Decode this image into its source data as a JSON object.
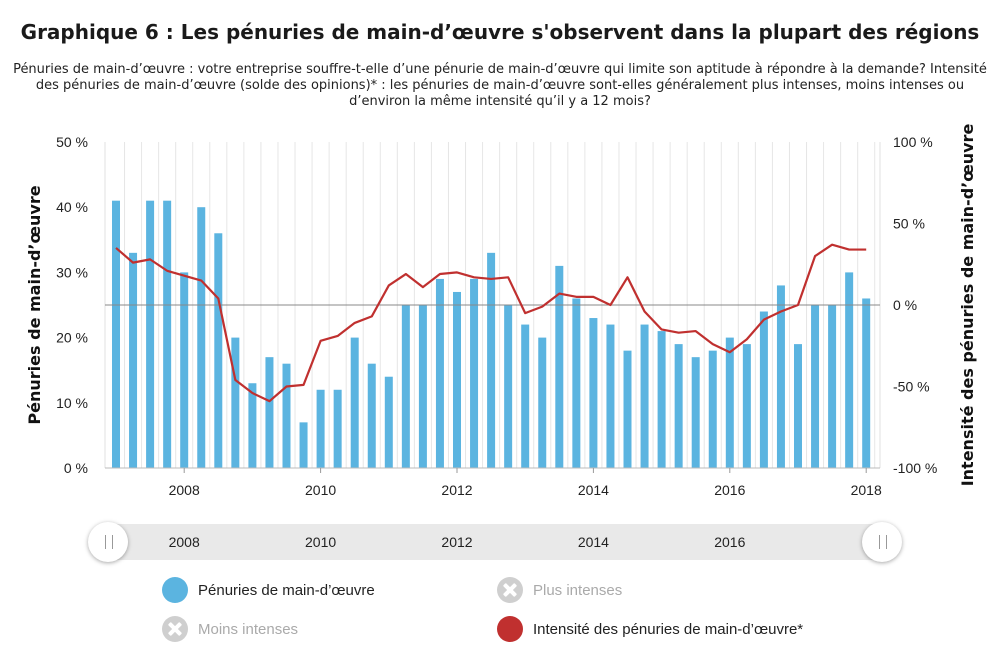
{
  "title": "Graphique 6 : Les pénuries de main-d’œuvre s'observent dans la plupart des régions",
  "subtitle": "Pénuries de main-d’œuvre : votre entreprise souffre-t-elle d’une pénurie de main-d’œuvre qui limite son aptitude à répondre à la demande? Intensité des pénuries de main-d’œuvre (solde des opinions)* : les pénuries de main-d’œuvre sont-elles généralement plus intenses, moins intenses ou d’environ la même intensité qu’il y a 12 mois?",
  "colors": {
    "bars": "#5bb4e0",
    "line": "#c0302f",
    "inactive": "#cfcfcf",
    "zero_line": "#888888"
  },
  "chart_data": {
    "type": "bar+line",
    "x": [
      "2007Q1",
      "2007Q2",
      "2007Q3",
      "2007Q4",
      "2008Q1",
      "2008Q2",
      "2008Q3",
      "2008Q4",
      "2009Q1",
      "2009Q2",
      "2009Q3",
      "2009Q4",
      "2010Q1",
      "2010Q2",
      "2010Q3",
      "2010Q4",
      "2011Q1",
      "2011Q2",
      "2011Q3",
      "2011Q4",
      "2012Q1",
      "2012Q2",
      "2012Q3",
      "2012Q4",
      "2013Q1",
      "2013Q2",
      "2013Q3",
      "2013Q4",
      "2014Q1",
      "2014Q2",
      "2014Q3",
      "2014Q4",
      "2015Q1",
      "2015Q2",
      "2015Q3",
      "2015Q4",
      "2016Q1",
      "2016Q2",
      "2016Q3",
      "2016Q4",
      "2017Q1",
      "2017Q2",
      "2017Q3",
      "2017Q4",
      "2018Q1"
    ],
    "series": [
      {
        "name": "Pénuries de main-d’œuvre",
        "type": "bar",
        "axis": "left",
        "values": [
          41,
          33,
          41,
          41,
          30,
          40,
          36,
          20,
          13,
          17,
          16,
          7,
          12,
          12,
          20,
          16,
          14,
          25,
          25,
          29,
          27,
          29,
          33,
          25,
          22,
          20,
          31,
          26,
          23,
          22,
          18,
          22,
          21,
          19,
          17,
          18,
          20,
          19,
          24,
          28,
          19,
          25,
          25,
          30,
          26
        ]
      },
      {
        "name": "Intensité des pénuries de main-d’œuvre*",
        "type": "line",
        "axis": "right",
        "values": [
          35,
          26,
          28,
          21,
          18,
          15,
          4,
          -46,
          -54,
          -59,
          -50,
          -49,
          -22,
          -19,
          -11,
          -7,
          12,
          19,
          11,
          19,
          20,
          17,
          16,
          17,
          -5,
          -1,
          7,
          5,
          5,
          0,
          17,
          -4,
          -15,
          -17,
          -16,
          -24,
          -29,
          -21,
          -9,
          -4,
          0,
          30,
          37,
          34,
          34
        ]
      }
    ],
    "x_ticks": [
      "2008",
      "2010",
      "2012",
      "2014",
      "2016",
      "2018"
    ],
    "y_left": {
      "label": "Pénuries de main-d’œuvre",
      "range": [
        0,
        50
      ],
      "ticks": [
        "0 %",
        "10 %",
        "20 %",
        "30 %",
        "40 %",
        "50 %"
      ]
    },
    "y_right": {
      "label": "Intensité des pénuries de main-d’œuvre",
      "range": [
        -100,
        100
      ],
      "ticks": [
        "-100 %",
        "-50 %",
        "0 %",
        "50 %",
        "100 %"
      ]
    },
    "grid": "vertical",
    "legend": "bottom"
  },
  "navigator": {
    "labels": [
      "2008",
      "2010",
      "2012",
      "2014",
      "2016"
    ]
  },
  "legend": [
    {
      "label": "Pénuries de main-d’œuvre",
      "active": true,
      "kind": "bar"
    },
    {
      "label": "Plus intenses",
      "active": false,
      "kind": "inactive"
    },
    {
      "label": "Moins intenses",
      "active": false,
      "kind": "inactive"
    },
    {
      "label": "Intensité des pénuries de main-d’œuvre*",
      "active": true,
      "kind": "line"
    }
  ]
}
